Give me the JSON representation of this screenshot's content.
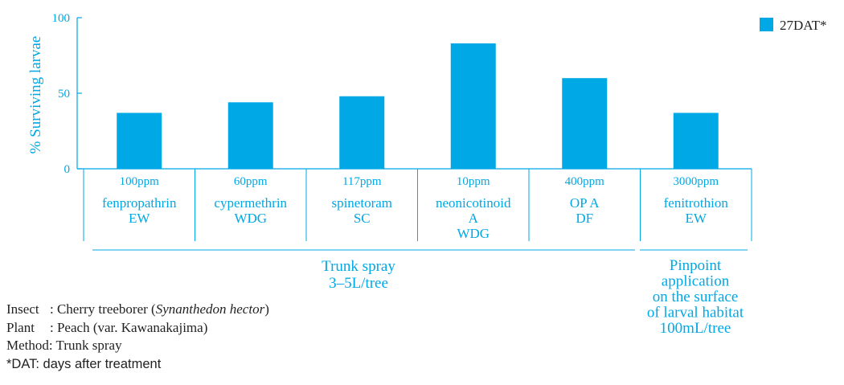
{
  "chart_data": {
    "type": "bar",
    "ylabel": "% Surviving larvae",
    "ylim": [
      0,
      100
    ],
    "yticks": [
      0,
      50,
      100
    ],
    "legend": {
      "position": "top-right",
      "entries": [
        "27DAT*"
      ]
    },
    "series": [
      {
        "name": "27DAT*",
        "color": "#00a8e6",
        "values": [
          37,
          44,
          48,
          83,
          60,
          37
        ]
      }
    ],
    "categories": [
      {
        "dose": "100ppm",
        "name": [
          "fenpropathrin",
          "EW"
        ]
      },
      {
        "dose": "60ppm",
        "name": [
          "cypermethrin",
          "WDG"
        ]
      },
      {
        "dose": "117ppm",
        "name": [
          "spinetoram",
          "SC"
        ]
      },
      {
        "dose": "10ppm",
        "name": [
          "neonicotinoid",
          "A",
          "WDG"
        ]
      },
      {
        "dose": "400ppm",
        "name": [
          "OP A",
          "DF"
        ]
      },
      {
        "dose": "3000ppm",
        "name": [
          "fenitrothion",
          "EW"
        ]
      }
    ],
    "groups": [
      {
        "label": [
          "Trunk spray",
          "3–5L/tree"
        ],
        "categories": [
          0,
          1,
          2,
          3,
          4
        ]
      },
      {
        "label": [
          "Pinpoint",
          "application",
          "on the surface",
          "of larval habitat",
          "100mL/tree"
        ],
        "categories": [
          5
        ]
      }
    ]
  },
  "notes": {
    "insect_key": "Insect",
    "insect_pre": ": Cherry treeborer (",
    "insect_sci": "Synanthedon hector",
    "insect_post": ")",
    "plant_key": "Plant",
    "plant_val": ": Peach (var. Kawanakajima)",
    "method": "Method: Trunk spray",
    "dat": "*DAT: days after treatment"
  }
}
